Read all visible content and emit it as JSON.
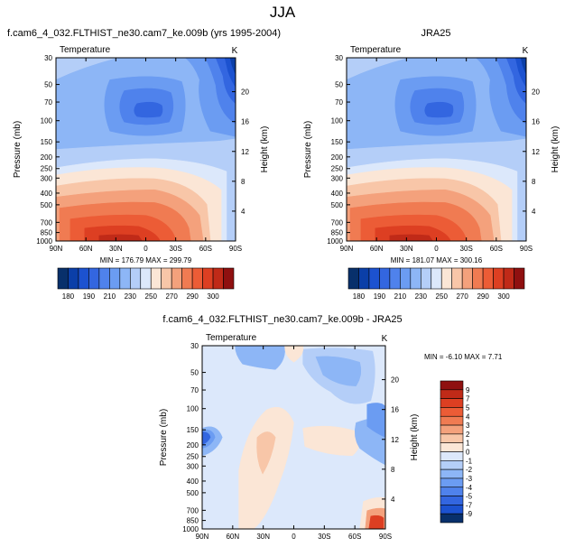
{
  "suptitle": "JJA",
  "chart_data": [
    {
      "type": "heatmap",
      "title": "f.cam6_4_032.FLTHIST_ne30.cam7_ke.009b (yrs 1995-2004)",
      "variable": "Temperature",
      "units": "K",
      "ylabel": "Pressure (mb)",
      "ylabel_right": "Height (km)",
      "x_ticks": [
        "90N",
        "60N",
        "30N",
        "0",
        "30S",
        "60S",
        "90S"
      ],
      "y_ticks": [
        "30",
        "50",
        "70",
        "100",
        "150",
        "200",
        "250",
        "300",
        "400",
        "500",
        "700",
        "850",
        "1000"
      ],
      "height_ticks": [
        "20",
        "16",
        "12",
        "8",
        "4"
      ],
      "stats": "MIN = 176.79  MAX = 299.79",
      "colorbar": {
        "orientation": "horizontal",
        "labels": [
          "180",
          "190",
          "210",
          "230",
          "250",
          "270",
          "290",
          "300"
        ],
        "colors": [
          "#08306b",
          "#0b3fa8",
          "#1c52d0",
          "#3366e0",
          "#4f82ec",
          "#6b9cf2",
          "#8db6f6",
          "#b4cef8",
          "#dce8fb",
          "#fbe6d6",
          "#f8c6a8",
          "#f4a17c",
          "#f07b52",
          "#ec5c36",
          "#dd3f22",
          "#c02a18",
          "#8f1010"
        ]
      }
    },
    {
      "type": "heatmap",
      "title": "JRA25",
      "variable": "Temperature",
      "units": "K",
      "ylabel": "Pressure (mb)",
      "ylabel_right": "Height (km)",
      "x_ticks": [
        "90N",
        "60N",
        "30N",
        "0",
        "30S",
        "60S",
        "90S"
      ],
      "y_ticks": [
        "30",
        "50",
        "70",
        "100",
        "150",
        "200",
        "250",
        "300",
        "400",
        "500",
        "700",
        "850",
        "1000"
      ],
      "height_ticks": [
        "20",
        "16",
        "12",
        "8",
        "4"
      ],
      "stats": "MIN = 181.07  MAX = 300.16",
      "colorbar": {
        "orientation": "horizontal",
        "labels": [
          "180",
          "190",
          "210",
          "230",
          "250",
          "270",
          "290",
          "300"
        ],
        "colors": [
          "#08306b",
          "#0b3fa8",
          "#1c52d0",
          "#3366e0",
          "#4f82ec",
          "#6b9cf2",
          "#8db6f6",
          "#b4cef8",
          "#dce8fb",
          "#fbe6d6",
          "#f8c6a8",
          "#f4a17c",
          "#f07b52",
          "#ec5c36",
          "#dd3f22",
          "#c02a18",
          "#8f1010"
        ]
      }
    },
    {
      "type": "heatmap",
      "title": "f.cam6_4_032.FLTHIST_ne30.cam7_ke.009b - JRA25",
      "variable": "Temperature",
      "units": "K",
      "ylabel": "Pressure (mb)",
      "ylabel_right": "Height (km)",
      "x_ticks": [
        "90N",
        "60N",
        "30N",
        "0",
        "30S",
        "60S",
        "90S"
      ],
      "y_ticks": [
        "30",
        "50",
        "70",
        "100",
        "150",
        "200",
        "250",
        "300",
        "400",
        "500",
        "700",
        "850",
        "1000"
      ],
      "height_ticks": [
        "20",
        "16",
        "12",
        "8",
        "4"
      ],
      "stats": "MIN = -6.10  MAX =  7.71",
      "colorbar": {
        "orientation": "vertical",
        "labels": [
          "9",
          "7",
          "5",
          "4",
          "3",
          "2",
          "1",
          "0",
          "-1",
          "-2",
          "-3",
          "-4",
          "-5",
          "-7",
          "-9"
        ],
        "colors": [
          "#8f1010",
          "#c02a18",
          "#dd3f22",
          "#ec5c36",
          "#f07b52",
          "#f4a17c",
          "#f8c6a8",
          "#fbe6d6",
          "#dce8fb",
          "#b4cef8",
          "#8db6f6",
          "#6b9cf2",
          "#4f82ec",
          "#3366e0",
          "#1c52d0",
          "#08306b"
        ]
      }
    }
  ]
}
